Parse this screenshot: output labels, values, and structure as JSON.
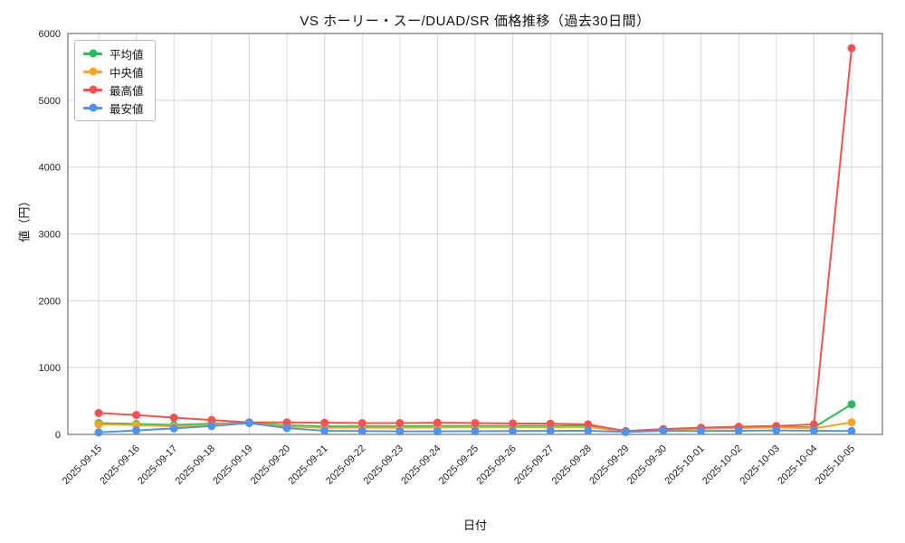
{
  "chart_data": {
    "type": "line",
    "title": "VS ホーリー・スー/DUAD/SR 価格推移（過去30日間）",
    "xlabel": "日付",
    "ylabel": "値（円）",
    "ylim": [
      0,
      6000
    ],
    "yticks": [
      0,
      1000,
      2000,
      3000,
      4000,
      5000,
      6000
    ],
    "grid": true,
    "legend_position": "upper-left",
    "marker": "circle",
    "categories": [
      "2025-09-15",
      "2025-09-16",
      "2025-09-17",
      "2025-09-18",
      "2025-09-19",
      "2025-09-20",
      "2025-09-21",
      "2025-09-22",
      "2025-09-23",
      "2025-09-24",
      "2025-09-25",
      "2025-09-26",
      "2025-09-27",
      "2025-09-28",
      "2025-09-29",
      "2025-09-30",
      "2025-10-01",
      "2025-10-02",
      "2025-10-03",
      "2025-10-04",
      "2025-10-05"
    ],
    "series": [
      {
        "key": "average",
        "name": "平均値",
        "color": "#2eb85c",
        "values": [
          170,
          155,
          140,
          160,
          175,
          135,
          120,
          120,
          120,
          125,
          125,
          125,
          125,
          130,
          45,
          70,
          90,
          100,
          110,
          105,
          450
        ]
      },
      {
        "key": "median",
        "name": "中央値",
        "color": "#f5a623",
        "values": [
          150,
          140,
          120,
          145,
          172,
          120,
          100,
          100,
          100,
          105,
          108,
          108,
          108,
          110,
          40,
          65,
          85,
          95,
          105,
          90,
          180
        ]
      },
      {
        "key": "max",
        "name": "最高値",
        "color": "#f4534f",
        "values": [
          320,
          290,
          250,
          215,
          180,
          180,
          175,
          170,
          170,
          175,
          170,
          165,
          160,
          150,
          50,
          80,
          100,
          115,
          125,
          150,
          5780
        ]
      },
      {
        "key": "min",
        "name": "最安値",
        "color": "#4d94f2",
        "values": [
          30,
          60,
          90,
          125,
          170,
          95,
          55,
          50,
          45,
          45,
          48,
          50,
          52,
          55,
          35,
          55,
          50,
          55,
          60,
          55,
          50
        ]
      }
    ]
  }
}
